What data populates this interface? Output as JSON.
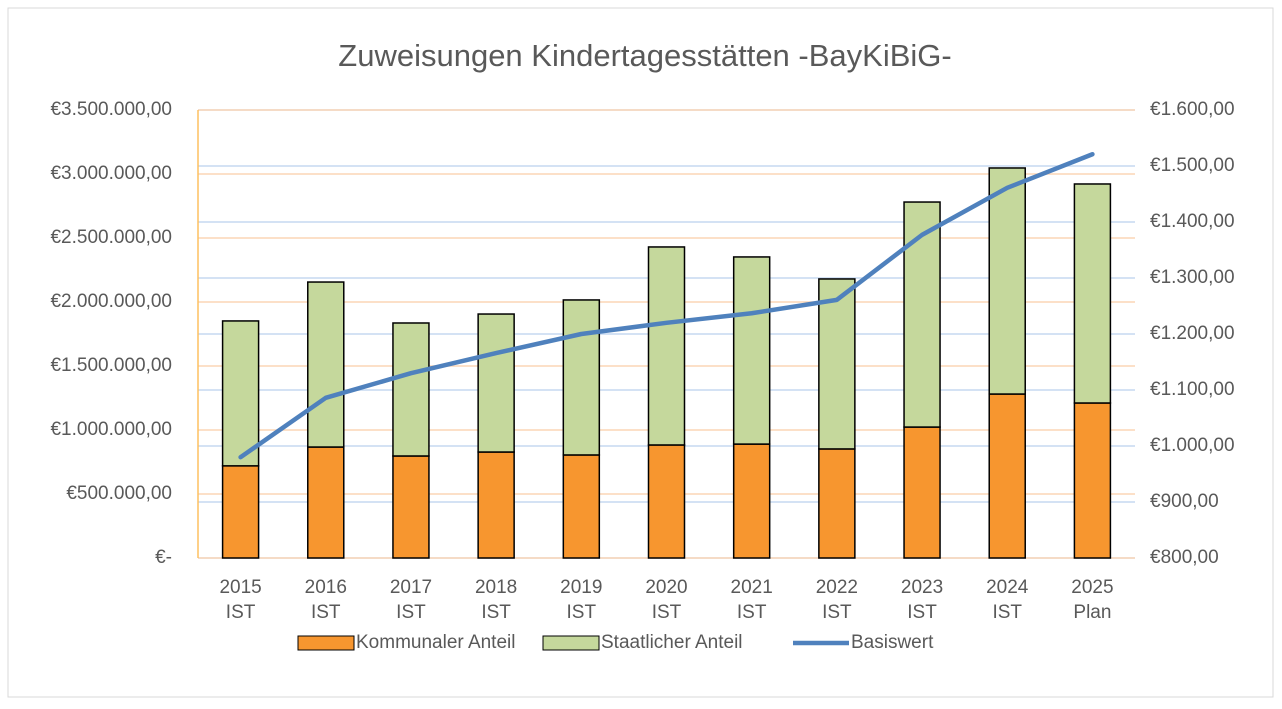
{
  "chart_data": {
    "type": "stacked_bar_line",
    "title": "Zuweisungen Kindertagesstätten -BayKiBiG-",
    "categories": [
      "2015 IST",
      "2016 IST",
      "2017 IST",
      "2018 IST",
      "2019 IST",
      "2020 IST",
      "2021 IST",
      "2022 IST",
      "2023 IST",
      "2024 IST",
      "2025 Plan"
    ],
    "series": [
      {
        "name": "Kommunaler Anteil",
        "color": "#f7962f",
        "kind": "bar",
        "values": [
          720000,
          867000,
          797000,
          828000,
          805000,
          883000,
          890000,
          852000,
          1023000,
          1281000,
          1211000
        ]
      },
      {
        "name": "Staatlicher Anteil",
        "color": "#c5d89c",
        "kind": "bar",
        "values": [
          1132000,
          1289000,
          1039000,
          1078000,
          1211000,
          1547000,
          1462000,
          1328000,
          1758000,
          1766000,
          1711000
        ]
      },
      {
        "name": "Basiswert",
        "color": "#4f81bd",
        "kind": "line",
        "axis": "y2",
        "values": [
          980,
          1086,
          1130,
          1166,
          1200,
          1220,
          1237,
          1261,
          1377,
          1461,
          1521
        ]
      }
    ],
    "ylim": [
      0,
      3500000
    ],
    "yticks": [
      {
        "value": 0,
        "label": "€-"
      },
      {
        "value": 500000,
        "label": "€500.000,00"
      },
      {
        "value": 1000000,
        "label": "€1.000.000,00"
      },
      {
        "value": 1500000,
        "label": "€1.500.000,00"
      },
      {
        "value": 2000000,
        "label": "€2.000.000,00"
      },
      {
        "value": 2500000,
        "label": "€2.500.000,00"
      },
      {
        "value": 3000000,
        "label": "€3.000.000,00"
      },
      {
        "value": 3500000,
        "label": "€3.500.000,00"
      }
    ],
    "y2lim": [
      800,
      1600
    ],
    "y2ticks": [
      {
        "value": 800,
        "label": "€800,00"
      },
      {
        "value": 900,
        "label": "€900,00"
      },
      {
        "value": 1000,
        "label": "€1.000,00"
      },
      {
        "value": 1100,
        "label": "€1.100,00"
      },
      {
        "value": 1200,
        "label": "€1.200,00"
      },
      {
        "value": 1300,
        "label": "€1.300,00"
      },
      {
        "value": 1400,
        "label": "€1.400,00"
      },
      {
        "value": 1500,
        "label": "€1.500,00"
      },
      {
        "value": 1600,
        "label": "€1.600,00"
      }
    ],
    "grid": true,
    "legend": "bottom"
  }
}
